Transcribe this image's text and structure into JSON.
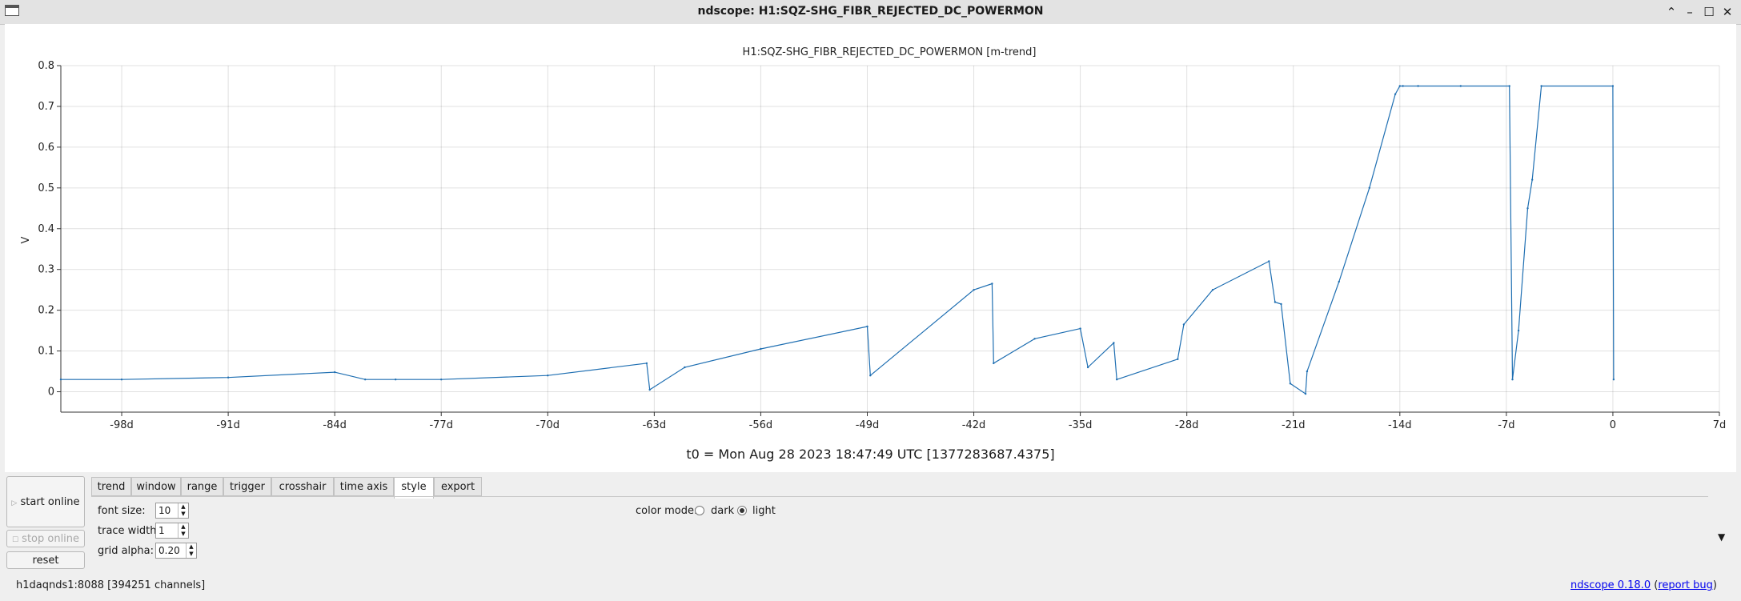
{
  "window": {
    "title": "ndscope: H1:SQZ-SHG_FIBR_REJECTED_DC_POWERMON",
    "controls": [
      "⌃",
      "–",
      "☐",
      "✕"
    ]
  },
  "plot": {
    "title": "H1:SQZ-SHG_FIBR_REJECTED_DC_POWERMON [m-trend]",
    "t0_label": "t0 = Mon Aug 28 2023 18:47:49 UTC [1377283687.4375]"
  },
  "chart_data": {
    "type": "line",
    "title": "H1:SQZ-SHG_FIBR_REJECTED_DC_POWERMON [m-trend]",
    "xlabel": "",
    "ylabel": "V",
    "xlim": [
      -102,
      7
    ],
    "ylim": [
      -0.05,
      0.8
    ],
    "x_ticks": [
      -98,
      -91,
      -84,
      -77,
      -70,
      -63,
      -56,
      -49,
      -42,
      -35,
      -28,
      -21,
      -14,
      -7,
      0,
      7
    ],
    "x_tick_labels": [
      "-98d",
      "-91d",
      "-84d",
      "-77d",
      "-70d",
      "-63d",
      "-56d",
      "-49d",
      "-42d",
      "-35d",
      "-28d",
      "-21d",
      "-14d",
      "-7d",
      "0",
      "7d"
    ],
    "y_ticks": [
      0,
      0.1,
      0.2,
      0.3,
      0.4,
      0.5,
      0.6,
      0.7,
      0.8
    ],
    "y_tick_labels": [
      "0",
      "0.1",
      "0.2",
      "0.3",
      "0.4",
      "0.5",
      "0.6",
      "0.7",
      "0.8"
    ],
    "grid": true,
    "color": "#1f6fb2",
    "series": [
      {
        "x": [
          -102,
          -98,
          -91,
          -84,
          -82,
          -80,
          -77,
          -70,
          -63.5,
          -63.3,
          -61,
          -56,
          -49,
          -48.8,
          -42,
          -40.8,
          -40.7,
          -38,
          -35,
          -34.5,
          -32.8,
          -32.6,
          -28.6,
          -28.2,
          -26.3,
          -22.6,
          -22.2,
          -21.8,
          -21.2,
          -20.2,
          -20.1,
          -18,
          -16,
          -14.3,
          -14.0,
          -13.8,
          -12.8,
          -10,
          -6.8,
          -6.6,
          -6.2,
          -5.6,
          -5.3,
          -4.7,
          0,
          0.05
        ],
        "y": [
          0.03,
          0.03,
          0.035,
          0.048,
          0.03,
          0.03,
          0.03,
          0.04,
          0.07,
          0.005,
          0.06,
          0.105,
          0.16,
          0.04,
          0.25,
          0.265,
          0.07,
          0.13,
          0.155,
          0.06,
          0.12,
          0.03,
          0.08,
          0.165,
          0.25,
          0.32,
          0.22,
          0.215,
          0.02,
          -0.005,
          0.05,
          0.27,
          0.5,
          0.73,
          0.75,
          0.75,
          0.75,
          0.75,
          0.75,
          0.03,
          0.15,
          0.45,
          0.52,
          0.75,
          0.75,
          0.03
        ]
      }
    ]
  },
  "tabs": [
    "trend",
    "window",
    "range",
    "trigger",
    "crosshair",
    "time axis",
    "style",
    "export"
  ],
  "active_tab": "style",
  "buttons": {
    "start": "start online",
    "stop": "stop online",
    "reset": "reset"
  },
  "style_panel": {
    "font_size_label": "font size:",
    "font_size_value": "10",
    "trace_width_label": "trace width:",
    "trace_width_value": "1",
    "grid_alpha_label": "grid alpha:",
    "grid_alpha_value": "0.20",
    "color_mode_label": "color mode:",
    "dark_label": "dark",
    "light_label": "light",
    "selected_mode": "light"
  },
  "status": {
    "server": "h1daqnds1:8088  [394251 channels]",
    "version_link": "ndscope 0.18.0",
    "report_link": "report bug"
  }
}
